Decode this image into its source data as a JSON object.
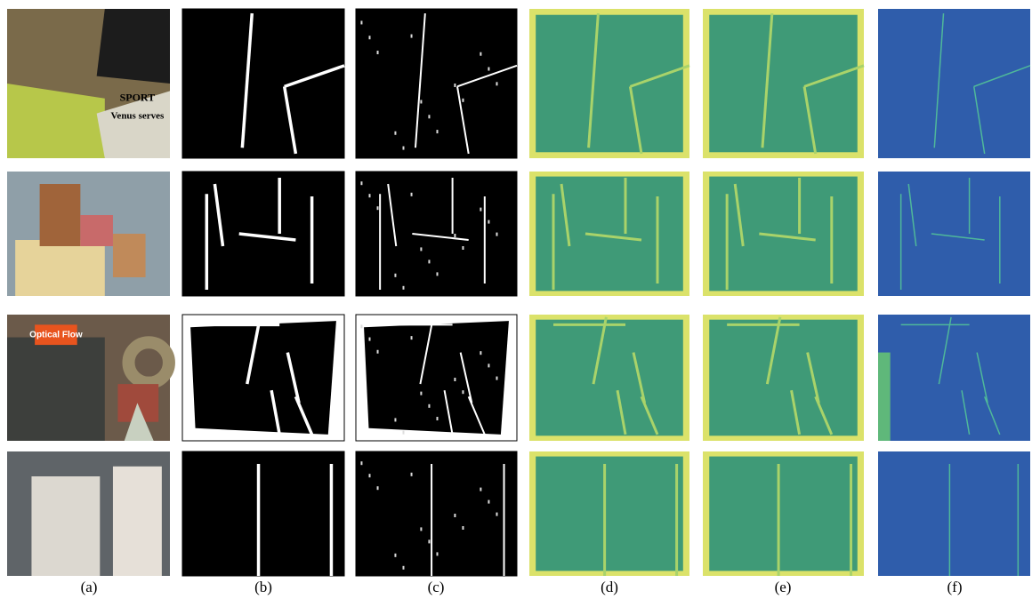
{
  "panel_labels": [
    "(a)",
    "(b)",
    "(c)",
    "(d)",
    "(e)",
    "(f)"
  ],
  "image_texts": {
    "row_0": [
      "SPORT",
      "Venus serves"
    ],
    "row_2": [
      "Optical Flow"
    ]
  }
}
